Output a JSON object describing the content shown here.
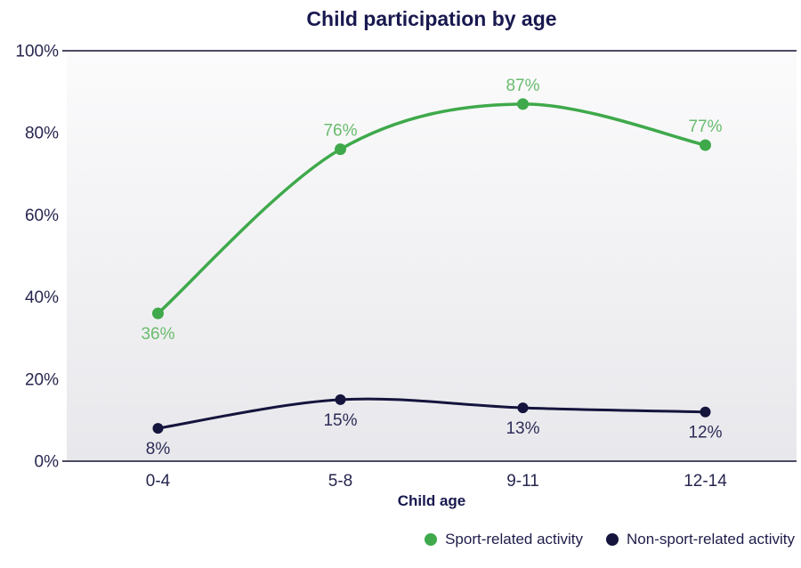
{
  "chart_data": {
    "type": "line",
    "title": "Child participation by age",
    "xlabel": "Child age",
    "ylabel": "",
    "categories": [
      "0-4",
      "5-8",
      "9-11",
      "12-14"
    ],
    "series": [
      {
        "name": "Sport-related activity",
        "values": [
          36,
          76,
          87,
          77
        ],
        "labels": [
          "36%",
          "76%",
          "87%",
          "77%"
        ],
        "label_side": [
          "below",
          "above",
          "above",
          "above"
        ],
        "color": "#3fa94b",
        "label_color": "#6abc6e"
      },
      {
        "name": "Non-sport-related activity",
        "values": [
          8,
          15,
          13,
          12
        ],
        "labels": [
          "8%",
          "15%",
          "13%",
          "12%"
        ],
        "label_side": [
          "below",
          "below",
          "below",
          "below"
        ],
        "color": "#14143d",
        "label_color": "#2c2c58"
      }
    ],
    "ylim": [
      0,
      100
    ],
    "yticks": [
      0,
      20,
      40,
      60,
      80,
      100
    ],
    "ytick_labels": [
      "0%",
      "20%",
      "40%",
      "60%",
      "80%",
      "100%"
    ],
    "grid": false,
    "line_style": "smooth",
    "legend_position": "bottom-right"
  },
  "colors": {
    "page_bg": "#ffffff",
    "title": "#191950",
    "axis_text": "#26264f",
    "axis_line": "#4b4b62",
    "legend_text": "#1d1d4a",
    "plot_bg_top": "#fbfbfc",
    "plot_bg_bottom": "#e8e8ec"
  }
}
